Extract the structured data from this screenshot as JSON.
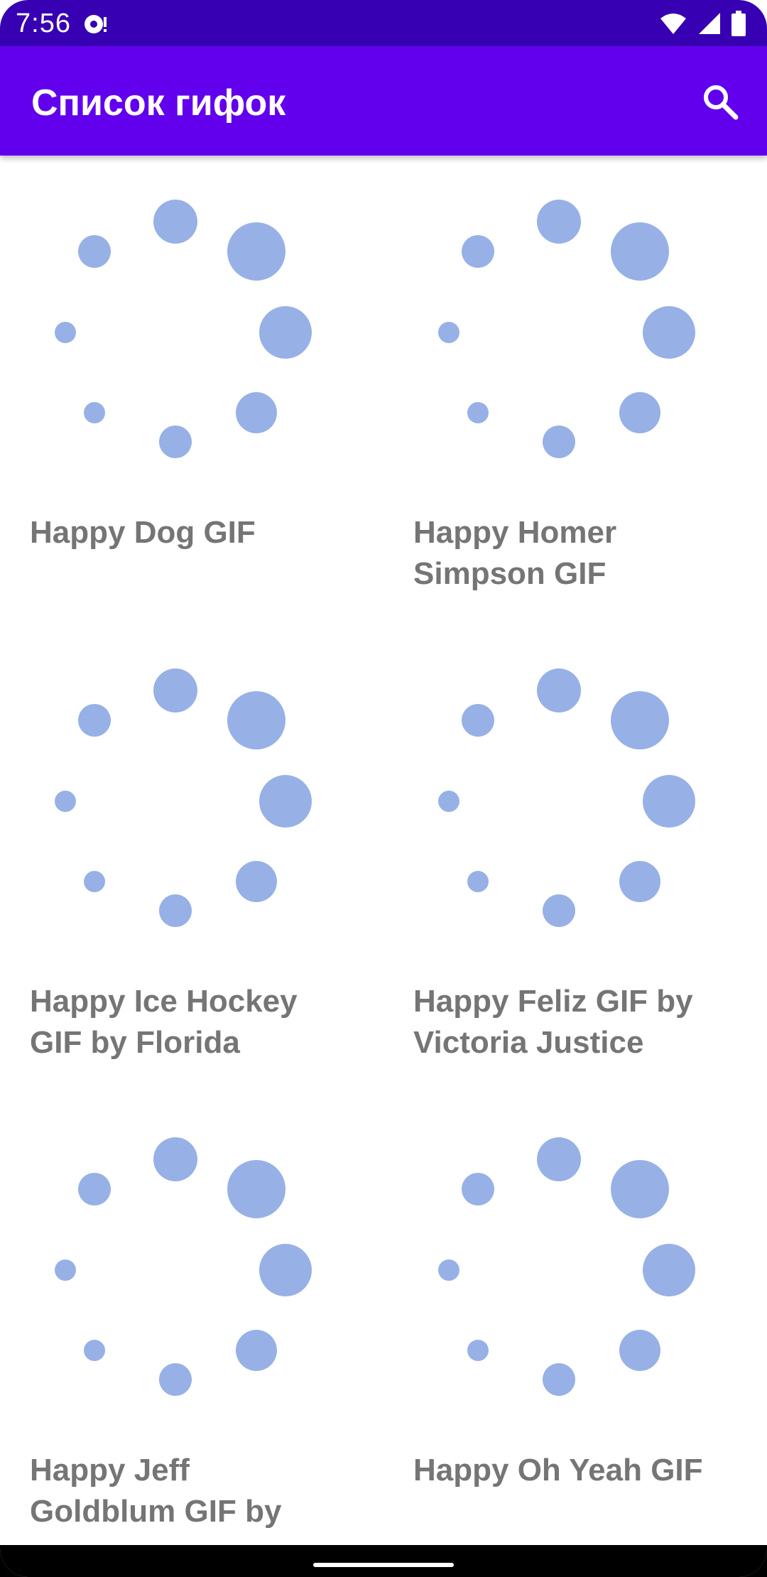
{
  "status_bar": {
    "time": "7:56",
    "icons": [
      "notification-icon",
      "wifi-icon",
      "signal-icon",
      "battery-icon"
    ]
  },
  "app_bar": {
    "title": "Список гифок",
    "search_icon": "search-icon"
  },
  "colors": {
    "status_bar": "#3700b3",
    "app_bar": "#6200ee",
    "spinner_dot": "#97b1e6",
    "card_title": "#757575"
  },
  "gifs": [
    {
      "title": "Happy Dog GIF",
      "placeholder_icon": "loading-spinner-icon"
    },
    {
      "title": "Happy Homer Simpson GIF",
      "placeholder_icon": "loading-spinner-icon"
    },
    {
      "title": "Happy Ice Hockey GIF by Florida",
      "placeholder_icon": "loading-spinner-icon"
    },
    {
      "title": "Happy Feliz GIF by Victoria Justice",
      "placeholder_icon": "loading-spinner-icon"
    },
    {
      "title": "Happy Jeff Goldblum GIF by",
      "placeholder_icon": "loading-spinner-icon"
    },
    {
      "title": "Happy Oh Yeah GIF",
      "placeholder_icon": "loading-spinner-icon"
    }
  ]
}
